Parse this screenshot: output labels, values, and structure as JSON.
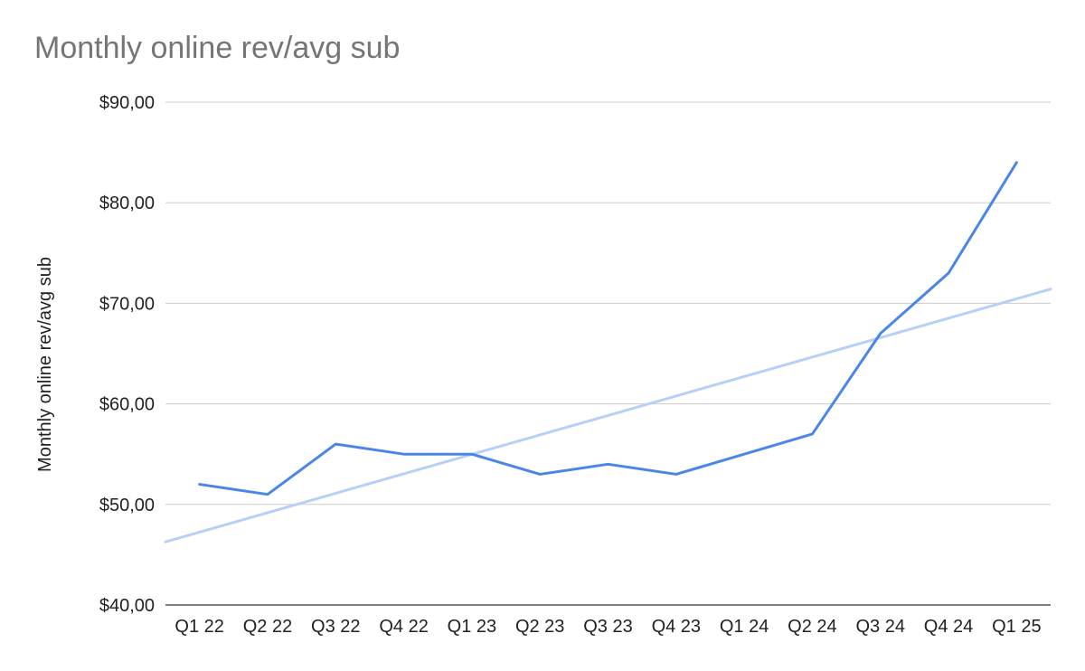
{
  "chart_data": {
    "type": "line",
    "title": "Monthly online rev/avg sub",
    "xlabel": "",
    "ylabel": "Monthly online rev/avg sub",
    "categories": [
      "Q1 22",
      "Q2 22",
      "Q3 22",
      "Q4 22",
      "Q1 23",
      "Q2 23",
      "Q3 23",
      "Q4 23",
      "Q1 24",
      "Q2 24",
      "Q3 24",
      "Q4 24",
      "Q1 25"
    ],
    "series": [
      {
        "values": [
          52,
          51,
          56,
          55,
          55,
          53,
          54,
          53,
          55,
          57,
          67,
          73,
          84
        ],
        "color": "#4a86e8"
      }
    ],
    "trendline": {
      "type": "linear",
      "color": "#b7d0f7"
    },
    "ylim": [
      40,
      90
    ],
    "yticks": [
      40,
      50,
      60,
      70,
      80,
      90
    ],
    "ytick_labels": [
      "$40,00",
      "$50,00",
      "$60,00",
      "$70,00",
      "$80,00",
      "$90,00"
    ],
    "grid": true,
    "legend": "none"
  }
}
